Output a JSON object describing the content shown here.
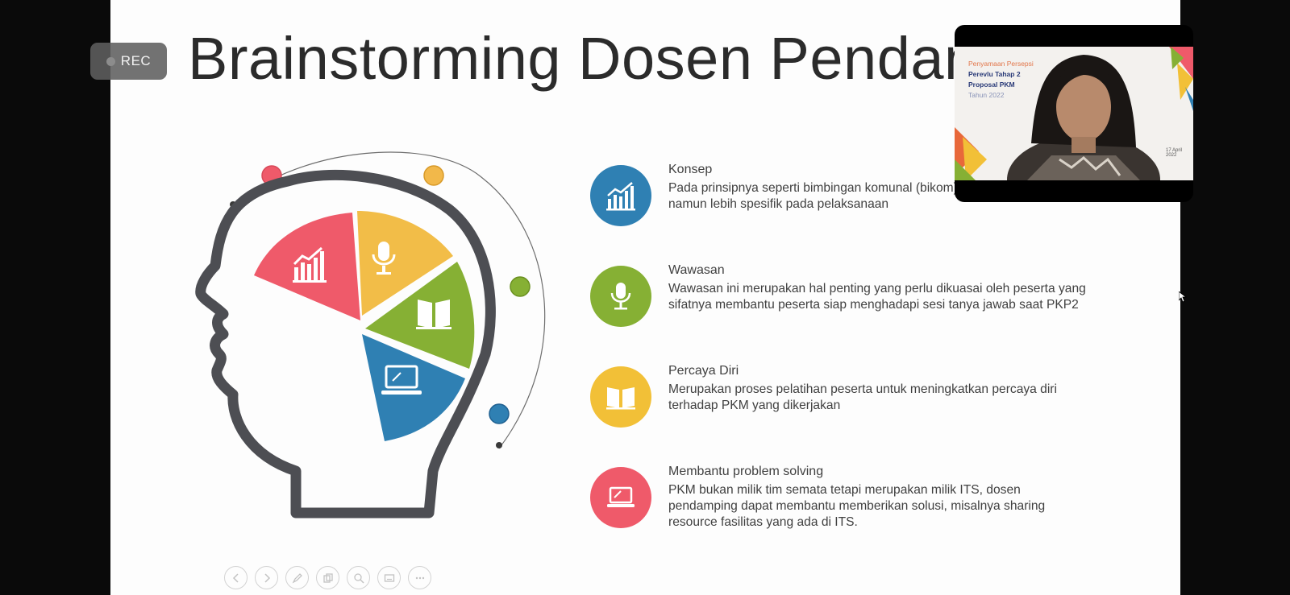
{
  "slide": {
    "title": "Brainstorming Dosen Pendamping",
    "items": [
      {
        "heading": "Konsep",
        "body": "Pada prinsipnya seperti bimbingan komunal (bikom)\nnamun lebih spesifik pada pelaksanaan",
        "color": "#2f80b3",
        "icon": "chart-icon"
      },
      {
        "heading": "Wawasan",
        "body": "Wawasan ini merupakan hal penting yang perlu dikuasai oleh peserta yang\nsifatnya membantu peserta siap menghadapi sesi tanya jawab saat PKP2",
        "color": "#86b034",
        "icon": "microphone-icon"
      },
      {
        "heading": "Percaya Diri",
        "body": "Merupakan proses pelatihan peserta untuk meningkatkan percaya diri\nterhadap PKM yang dikerjakan",
        "color": "#f2c037",
        "icon": "book-icon"
      },
      {
        "heading": "Membantu problem solving",
        "body": "PKM bukan milik tim semata tetapi merupakan milik ITS, dosen\npendamping dapat membantu memberikan solusi, misalnya sharing\nresource fasilitas yang ada di ITS.",
        "color": "#ef5a6a",
        "icon": "laptop-icon"
      }
    ]
  },
  "recording": {
    "label": "REC"
  },
  "video": {
    "lines": [
      "Penyamaan Persepsi",
      "Perevlu Tahap 2",
      "Proposal PKM",
      "Tahun 2022"
    ],
    "date": "17 April 2022"
  },
  "controls": [
    "previous-icon",
    "next-icon",
    "pen-icon",
    "pages-icon",
    "zoom-icon",
    "subtitle-icon",
    "more-icon"
  ]
}
